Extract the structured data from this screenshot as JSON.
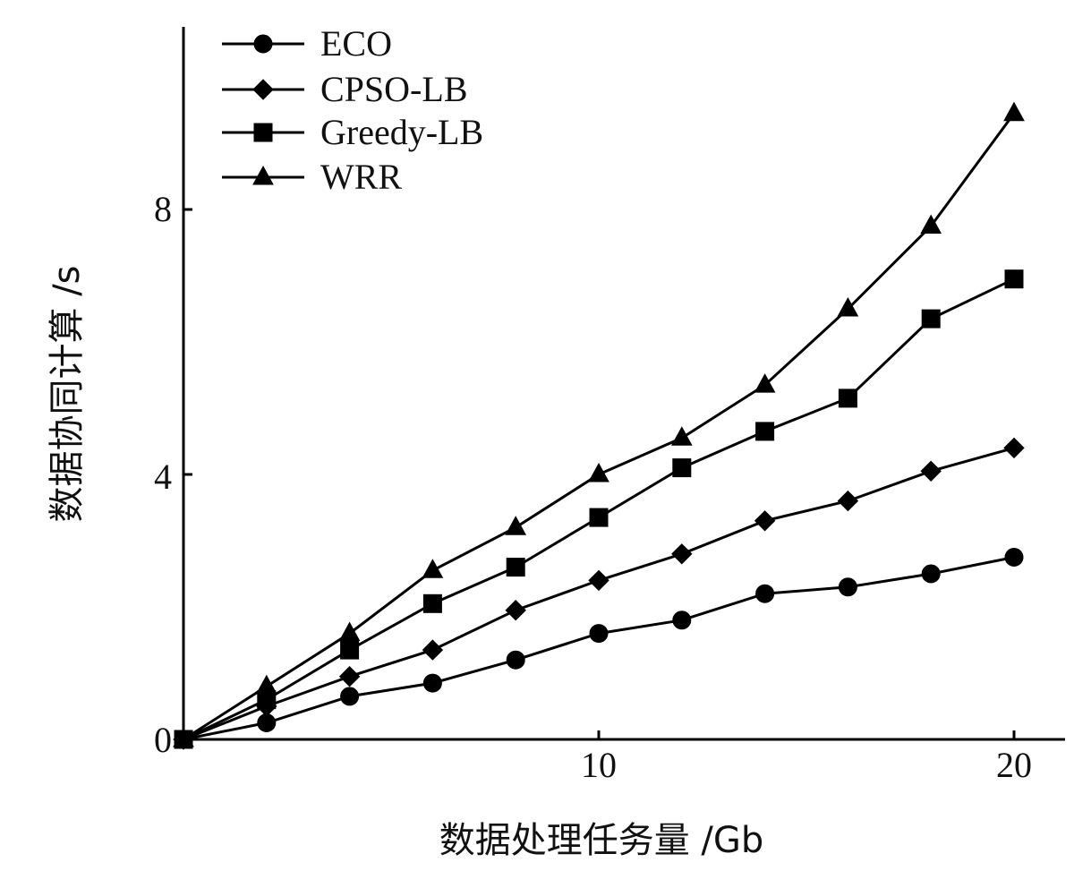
{
  "chart_data": {
    "type": "line",
    "title": "",
    "xlabel": "数据处理任务量 /Gb",
    "ylabel": "数据协同计算 /s",
    "xlim": [
      0,
      21.5
    ],
    "ylim": [
      0,
      10.8
    ],
    "x_ticks": [
      "10",
      "20"
    ],
    "y_ticks": [
      "0",
      "4",
      "8"
    ],
    "grid": false,
    "legend_position": "top-left",
    "x": [
      0,
      2,
      4,
      6,
      8,
      10,
      12,
      14,
      16,
      18,
      20
    ],
    "series": [
      {
        "name": "ECO",
        "marker": "circle",
        "values": [
          0,
          0.25,
          0.65,
          0.85,
          1.2,
          1.6,
          1.8,
          2.2,
          2.3,
          2.5,
          2.75
        ]
      },
      {
        "name": "CPSO-LB",
        "marker": "diamond",
        "values": [
          0,
          0.5,
          0.95,
          1.35,
          1.95,
          2.4,
          2.8,
          3.3,
          3.6,
          4.05,
          4.4
        ]
      },
      {
        "name": "Greedy-LB",
        "marker": "square",
        "values": [
          0,
          0.6,
          1.35,
          2.05,
          2.6,
          3.35,
          4.1,
          4.65,
          5.15,
          6.35,
          6.95
        ]
      },
      {
        "name": "WRR",
        "marker": "triangle",
        "values": [
          0,
          0.8,
          1.6,
          2.55,
          3.2,
          4.0,
          4.55,
          5.35,
          6.5,
          7.75,
          9.45
        ]
      }
    ]
  }
}
